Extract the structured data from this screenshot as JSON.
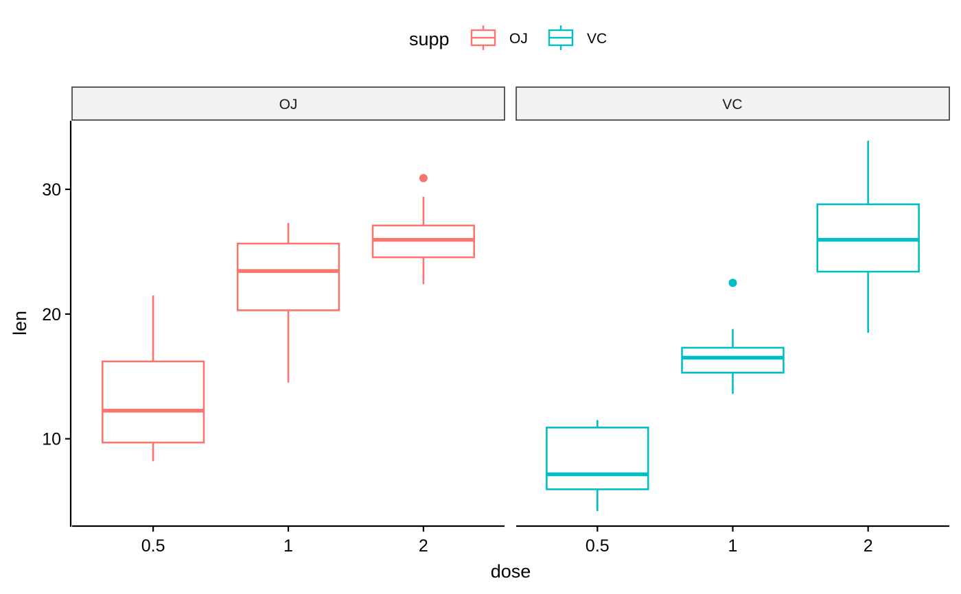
{
  "chart_data": {
    "type": "box",
    "xlabel": "dose",
    "ylabel": "len",
    "ylim": [
      3,
      35.5
    ],
    "yticks": [
      10,
      20,
      30
    ],
    "categories": [
      "0.5",
      "1",
      "2"
    ],
    "facet_var": "supp",
    "legend": {
      "title": "supp",
      "position": "top",
      "entries": [
        "OJ",
        "VC"
      ]
    },
    "grid": false,
    "panels": [
      {
        "label": "OJ",
        "color": "#F8766D",
        "boxes": [
          {
            "x": "0.5",
            "min": 8.2,
            "q1": 9.7,
            "median": 12.25,
            "q3": 16.2,
            "max": 21.5,
            "outliers": []
          },
          {
            "x": "1",
            "min": 14.5,
            "q1": 20.3,
            "median": 23.45,
            "q3": 25.65,
            "max": 27.3,
            "outliers": []
          },
          {
            "x": "2",
            "min": 22.4,
            "q1": 24.55,
            "median": 25.95,
            "q3": 27.1,
            "max": 29.4,
            "outliers": [
              30.9
            ]
          }
        ]
      },
      {
        "label": "VC",
        "color": "#00BFC4",
        "boxes": [
          {
            "x": "0.5",
            "min": 4.2,
            "q1": 5.95,
            "median": 7.15,
            "q3": 10.9,
            "max": 11.5,
            "outliers": []
          },
          {
            "x": "1",
            "min": 13.6,
            "q1": 15.3,
            "median": 16.5,
            "q3": 17.3,
            "max": 18.8,
            "outliers": [
              22.5
            ]
          },
          {
            "x": "2",
            "min": 18.5,
            "q1": 23.4,
            "median": 25.95,
            "q3": 28.8,
            "max": 33.9,
            "outliers": []
          }
        ]
      }
    ]
  }
}
